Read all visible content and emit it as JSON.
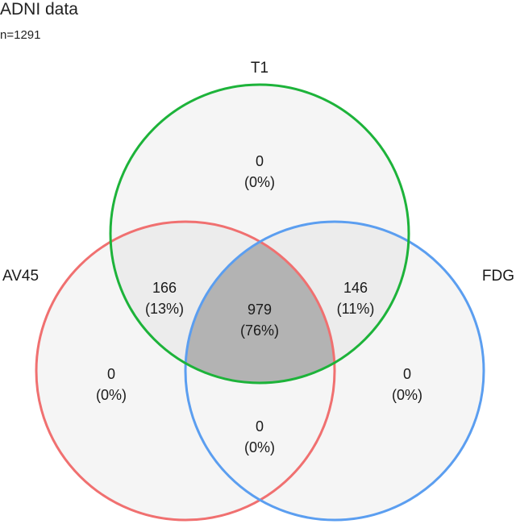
{
  "header": {
    "title": "ADNI data",
    "subtitle": "n=1291"
  },
  "sets": {
    "t1": {
      "label": "T1",
      "color": "#1db33a"
    },
    "av45": {
      "label": "AV45",
      "color": "#f07070"
    },
    "fdg": {
      "label": "FDG",
      "color": "#5b9ef0"
    }
  },
  "regions": {
    "t1_only": {
      "count": "0",
      "percent": "(0%)"
    },
    "av45_only": {
      "count": "0",
      "percent": "(0%)"
    },
    "fdg_only": {
      "count": "0",
      "percent": "(0%)"
    },
    "t1_av45": {
      "count": "166",
      "percent": "(13%)"
    },
    "t1_fdg": {
      "count": "146",
      "percent": "(11%)"
    },
    "av45_fdg": {
      "count": "0",
      "percent": "(0%)"
    },
    "all_three": {
      "count": "979",
      "percent": "(76%)"
    }
  },
  "fill_colors": {
    "light": "#f5f5f5",
    "pair": "#ececec",
    "triple": "#b3b3b3"
  }
}
